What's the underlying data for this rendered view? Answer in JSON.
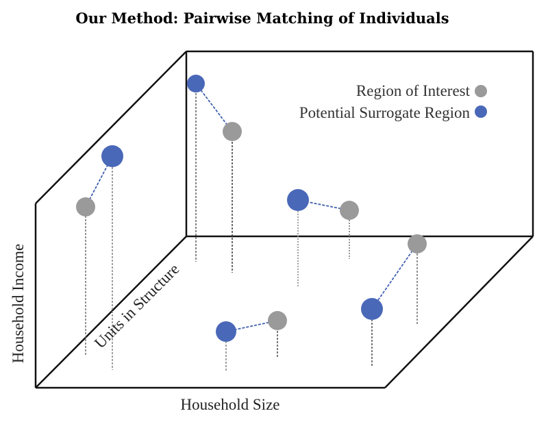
{
  "title": "Our Method: Pairwise Matching of Individuals",
  "axes": {
    "y_label": "Household Income",
    "depth_label": "Units in Structure",
    "x_label": "Household Size"
  },
  "legend": {
    "items": [
      {
        "label": "Region of Interest",
        "color": "#9a9a9a"
      },
      {
        "label": "Potential Surrogate Region",
        "color": "#4a68b8"
      }
    ]
  },
  "colors": {
    "interest": "#9a9a9a",
    "surrogate": "#4a68b8",
    "link": "#3f5fb0"
  },
  "pairs": [
    {
      "name": "pair-1"
    },
    {
      "name": "pair-2"
    },
    {
      "name": "pair-3"
    },
    {
      "name": "pair-4"
    },
    {
      "name": "pair-5"
    }
  ]
}
